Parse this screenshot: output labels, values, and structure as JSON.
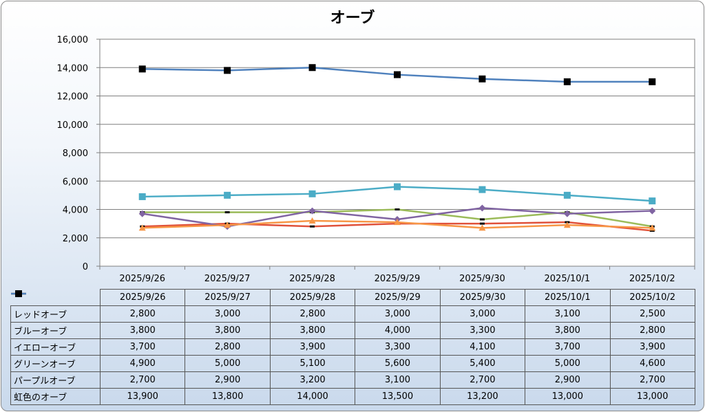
{
  "chart_data": {
    "type": "line",
    "title": "オーブ",
    "categories": [
      "2025/9/26",
      "2025/9/27",
      "2025/9/28",
      "2025/9/29",
      "2025/9/30",
      "2025/10/1",
      "2025/10/2"
    ],
    "ylim": [
      0,
      16000
    ],
    "yticks": [
      0,
      2000,
      4000,
      6000,
      8000,
      10000,
      12000,
      14000,
      16000
    ],
    "ytick_labels": [
      "0",
      "2,000",
      "4,000",
      "6,000",
      "8,000",
      "10,000",
      "12,000",
      "14,000",
      "16,000"
    ],
    "grid": true,
    "legend_placement": "data-table",
    "series": [
      {
        "name": "レッドオーブ",
        "color": "#e0513a",
        "marker": "dash",
        "values": [
          2800,
          3000,
          2800,
          3000,
          3000,
          3100,
          2500
        ],
        "labels": [
          "2,800",
          "3,000",
          "2,800",
          "3,000",
          "3,000",
          "3,100",
          "2,500"
        ]
      },
      {
        "name": "ブルーオーブ",
        "color": "#9bbb59",
        "marker": "dash",
        "values": [
          3800,
          3800,
          3800,
          4000,
          3300,
          3800,
          2800
        ],
        "labels": [
          "3,800",
          "3,800",
          "3,800",
          "4,000",
          "3,300",
          "3,800",
          "2,800"
        ]
      },
      {
        "name": "イエローオーブ",
        "color": "#8064a2",
        "marker": "diamond",
        "values": [
          3700,
          2800,
          3900,
          3300,
          4100,
          3700,
          3900
        ],
        "labels": [
          "3,700",
          "2,800",
          "3,900",
          "3,300",
          "4,100",
          "3,700",
          "3,900"
        ]
      },
      {
        "name": "グリーンオーブ",
        "color": "#4bacc6",
        "marker": "square",
        "values": [
          4900,
          5000,
          5100,
          5600,
          5400,
          5000,
          4600
        ],
        "labels": [
          "4,900",
          "5,000",
          "5,100",
          "5,600",
          "5,400",
          "5,000",
          "4,600"
        ]
      },
      {
        "name": "パープルオーブ",
        "color": "#f79646",
        "marker": "triangle",
        "values": [
          2700,
          2900,
          3200,
          3100,
          2700,
          2900,
          2700
        ],
        "labels": [
          "2,700",
          "2,900",
          "3,200",
          "3,100",
          "2,700",
          "2,900",
          "2,700"
        ]
      },
      {
        "name": "虹色のオーブ",
        "color": "#4f81bd",
        "marker": "square-black",
        "values": [
          13900,
          13800,
          14000,
          13500,
          13200,
          13000,
          13000
        ],
        "labels": [
          "13,900",
          "13,800",
          "14,000",
          "13,500",
          "13,200",
          "13,000",
          "13,000"
        ]
      }
    ]
  }
}
